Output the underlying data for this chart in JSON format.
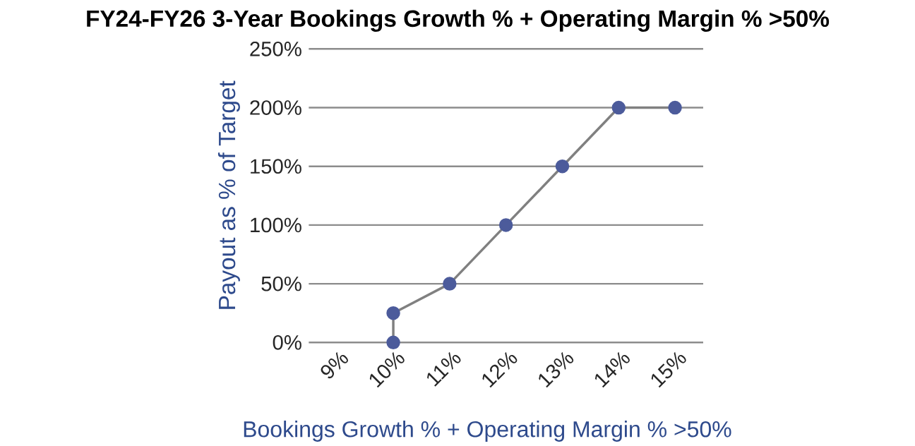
{
  "chart_data": {
    "type": "line",
    "title": "FY24-FY26 3-Year Bookings Growth % + Operating Margin % >50%",
    "xlabel": "Bookings Growth % + Operating Margin % >50%",
    "ylabel": "Payout as % of Target",
    "x": [
      10,
      10,
      11,
      12,
      13,
      14,
      15
    ],
    "series": [
      {
        "color": "#4c5b9b",
        "values": [
          0,
          25,
          50,
          100,
          150,
          200,
          200
        ]
      }
    ],
    "xlim": [
      8.5,
      15.5
    ],
    "ylim": [
      0,
      250
    ],
    "xticks": [
      {
        "value": 9,
        "label": "9%"
      },
      {
        "value": 10,
        "label": "10%"
      },
      {
        "value": 11,
        "label": "11%"
      },
      {
        "value": 12,
        "label": "12%"
      },
      {
        "value": 13,
        "label": "13%"
      },
      {
        "value": 14,
        "label": "14%"
      },
      {
        "value": 15,
        "label": "15%"
      }
    ],
    "yticks": [
      {
        "value": 0,
        "label": "0%"
      },
      {
        "value": 50,
        "label": "50%"
      },
      {
        "value": 100,
        "label": "100%"
      },
      {
        "value": 150,
        "label": "150%"
      },
      {
        "value": 200,
        "label": "200%"
      },
      {
        "value": 250,
        "label": "250%"
      }
    ],
    "grid": "y",
    "legend": false,
    "marker": "circle",
    "line_style": "solid"
  }
}
